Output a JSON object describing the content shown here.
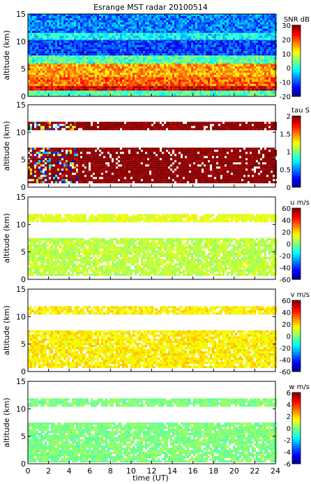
{
  "figure": {
    "title": "Esrange MST radar 20100514",
    "xlabel": "time (UT)"
  },
  "chart_data": [
    {
      "type": "heatmap",
      "panel": "snr",
      "ylabel": "altitude (km)",
      "ylim": [
        0,
        15
      ],
      "yticks": [
        0,
        5,
        10,
        15
      ],
      "xlim": [
        0,
        24
      ],
      "colorbar": {
        "label": "SNR dB",
        "min": -20,
        "max": 30,
        "ticks": [
          -20,
          -10,
          0,
          10,
          20,
          30
        ]
      },
      "colorscale": "jet",
      "layers": [
        {
          "alt_range": [
            0.4,
            1.2
          ],
          "level": 0.45
        },
        {
          "alt_range": [
            1.2,
            2.2
          ],
          "level": 0.92
        },
        {
          "alt_range": [
            2.2,
            3.8
          ],
          "level": 0.78
        },
        {
          "alt_range": [
            3.8,
            6.2
          ],
          "level": 0.72
        },
        {
          "alt_range": [
            6.2,
            7.5
          ],
          "level": 0.45
        },
        {
          "alt_range": [
            7.5,
            10.5
          ],
          "level": 0.18
        },
        {
          "alt_range": [
            10.5,
            11.8
          ],
          "level": 0.38
        },
        {
          "alt_range": [
            11.8,
            15
          ],
          "level": 0.25
        }
      ]
    },
    {
      "type": "heatmap",
      "panel": "tau",
      "ylabel": "altitude (km)",
      "ylim": [
        0,
        15
      ],
      "yticks": [
        0,
        5,
        10,
        15
      ],
      "xlim": [
        0,
        24
      ],
      "colorbar": {
        "label": "tau S",
        "min": 0,
        "max": 2,
        "ticks": [
          0,
          0.5,
          1,
          1.5,
          2
        ]
      },
      "colorscale": "jet",
      "layers": [
        {
          "alt_range": [
            1.0,
            7.2
          ],
          "level": 1.0
        },
        {
          "alt_range": [
            10.7,
            11.9
          ],
          "level": 1.0
        }
      ]
    },
    {
      "type": "heatmap",
      "panel": "u",
      "ylabel": "altitude (km)",
      "ylim": [
        0,
        15
      ],
      "yticks": [
        0,
        5,
        10,
        15
      ],
      "xlim": [
        0,
        24
      ],
      "colorbar": {
        "label": "u m/s",
        "min": -60,
        "max": 60,
        "ticks": [
          -60,
          -40,
          -20,
          0,
          20,
          40,
          60
        ]
      },
      "colorscale": "jet",
      "layers": [
        {
          "alt_range": [
            1.0,
            7.5
          ],
          "level": 0.56
        },
        {
          "alt_range": [
            10.7,
            11.9
          ],
          "level": 0.6
        }
      ]
    },
    {
      "type": "heatmap",
      "panel": "v",
      "ylabel": "altitude (km)",
      "ylim": [
        0,
        15
      ],
      "yticks": [
        0,
        5,
        10,
        15
      ],
      "xlim": [
        0,
        24
      ],
      "colorbar": {
        "label": "v m/s",
        "min": -60,
        "max": 60,
        "ticks": [
          -60,
          -40,
          -20,
          0,
          20,
          40,
          60
        ]
      },
      "colorscale": "jet",
      "layers": [
        {
          "alt_range": [
            1.0,
            7.5
          ],
          "level": 0.64
        },
        {
          "alt_range": [
            10.7,
            11.9
          ],
          "level": 0.64
        }
      ]
    },
    {
      "type": "heatmap",
      "panel": "w",
      "ylabel": "altitude (km)",
      "ylim": [
        0,
        15
      ],
      "yticks": [
        0,
        5,
        10,
        15
      ],
      "xlim": [
        0,
        24
      ],
      "xticks": [
        0,
        2,
        4,
        6,
        8,
        10,
        12,
        14,
        16,
        18,
        20,
        22,
        24
      ],
      "colorbar": {
        "label": "w m/s",
        "min": -6,
        "max": 6,
        "ticks": [
          -6,
          -4,
          -2,
          0,
          2,
          4,
          6
        ]
      },
      "colorscale": "jet",
      "layers": [
        {
          "alt_range": [
            0.5,
            7.5
          ],
          "level": 0.5
        },
        {
          "alt_range": [
            10.7,
            11.9
          ],
          "level": 0.5
        }
      ]
    }
  ]
}
